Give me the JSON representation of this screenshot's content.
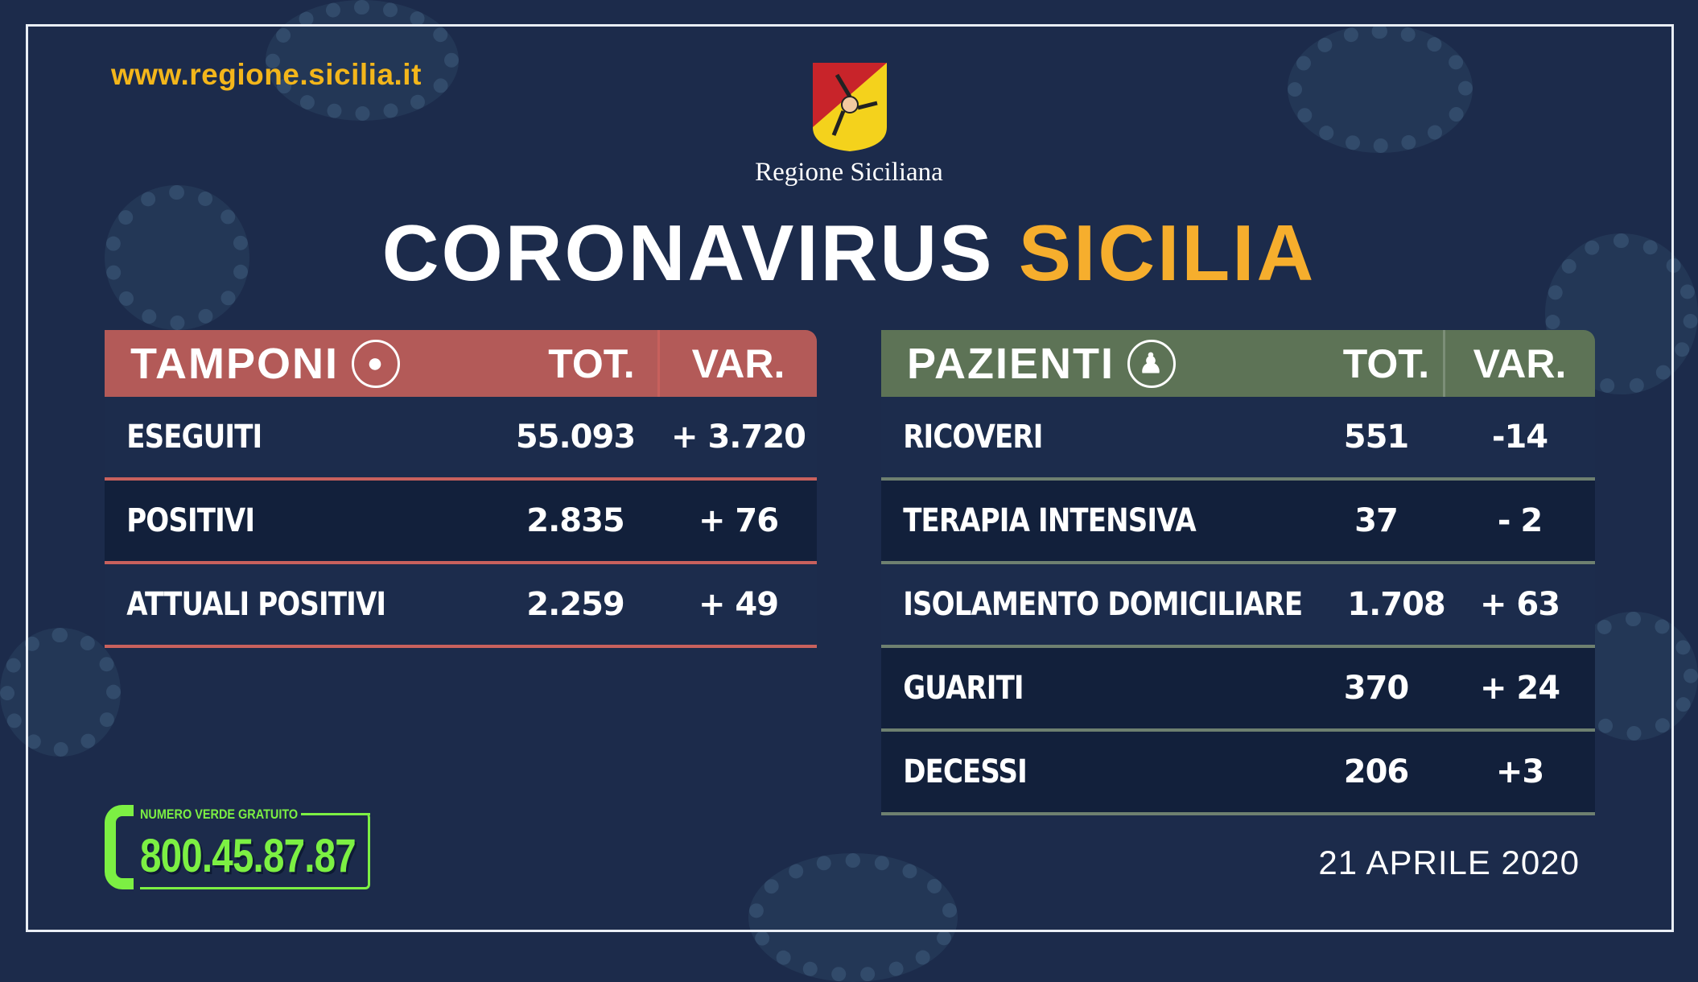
{
  "site_url": "www.regione.sicilia.it",
  "logo": {
    "icon": "trinacria-coat-of-arms",
    "text": "Regione Siciliana"
  },
  "title": {
    "part1": "CORONAVIRUS",
    "part2": "SICILIA"
  },
  "colors": {
    "background": "#1c2b4b",
    "tamponi_header": "#b35a58",
    "pazienti_header": "#5d7356",
    "accent_yellow": "#f6ae2d",
    "phone_green": "#7cf043"
  },
  "tamponi": {
    "title": "TAMPONI",
    "icon": "swab-icon",
    "col_tot": "TOT.",
    "col_var": "VAR.",
    "rows": [
      {
        "label": "ESEGUITI",
        "tot": "55.093",
        "var": "+ 3.720"
      },
      {
        "label": "POSITIVI",
        "tot": "2.835",
        "var": "+ 76"
      },
      {
        "label": "ATTUALI POSITIVI",
        "tot": "2.259",
        "var": "+ 49"
      }
    ]
  },
  "pazienti": {
    "title": "PAZIENTI",
    "icon": "person-icon",
    "col_tot": "TOT.",
    "col_var": "VAR.",
    "rows": [
      {
        "label": "RICOVERI",
        "tot": "551",
        "var": "-14"
      },
      {
        "label": "TERAPIA INTENSIVA",
        "tot": "37",
        "var": "- 2"
      },
      {
        "label": "ISOLAMENTO DOMICILIARE",
        "tot": "1.708",
        "var": "+ 63"
      },
      {
        "label": "GUARITI",
        "tot": "370",
        "var": "+ 24"
      },
      {
        "label": "DECESSI",
        "tot": "206",
        "var": "+3"
      }
    ]
  },
  "phone": {
    "label": "NUMERO VERDE GRATUITO",
    "number": "800.45.87.87",
    "icon": "phone-icon"
  },
  "date": "21 APRILE 2020"
}
